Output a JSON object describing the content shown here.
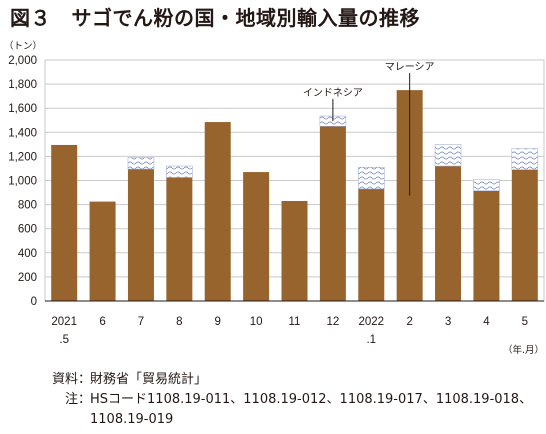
{
  "title": "図３　サゴでん粉の国・地域別輸入量の推移",
  "chart_data": {
    "type": "bar",
    "stacked": true,
    "y_unit": "（トン）",
    "x_unit": "（年.月）",
    "categories": [
      {
        "top": "2021",
        "bottom": ".5"
      },
      {
        "top": "6",
        "bottom": ""
      },
      {
        "top": "7",
        "bottom": ""
      },
      {
        "top": "8",
        "bottom": ""
      },
      {
        "top": "9",
        "bottom": ""
      },
      {
        "top": "10",
        "bottom": ""
      },
      {
        "top": "11",
        "bottom": ""
      },
      {
        "top": "12",
        "bottom": ""
      },
      {
        "top": "2022",
        "bottom": ".1"
      },
      {
        "top": "2",
        "bottom": ""
      },
      {
        "top": "3",
        "bottom": ""
      },
      {
        "top": "4",
        "bottom": ""
      },
      {
        "top": "5",
        "bottom": ""
      }
    ],
    "series": [
      {
        "name": "マレーシア",
        "color": "#98642e",
        "values": [
          1295,
          825,
          1095,
          1025,
          1485,
          1070,
          830,
          1450,
          930,
          1750,
          1120,
          915,
          1090
        ]
      },
      {
        "name": "インドネシア",
        "color": "#9aa7cf",
        "pattern": "wave",
        "values": [
          0,
          0,
          95,
          95,
          0,
          0,
          0,
          85,
          180,
          0,
          180,
          95,
          175
        ]
      }
    ],
    "ylim": [
      0,
      2000
    ],
    "yticks": [
      "0",
      "200",
      "400",
      "600",
      "800",
      "1,000",
      "1,200",
      "1,400",
      "1,600",
      "1,800",
      "2,000"
    ],
    "annotations": [
      {
        "label": "インドネシア",
        "series": 1,
        "category_index": 7
      },
      {
        "label": "マレーシア",
        "series": 0,
        "category_index": 9
      }
    ],
    "grid": true
  },
  "footer": {
    "source_label": "資料",
    "source_text": "財務省「貿易統計」",
    "note_label": "注",
    "note_text": "HSコード1108.19-011、1108.19-012、1108.19-017、1108.19-018、1108.19-019"
  }
}
